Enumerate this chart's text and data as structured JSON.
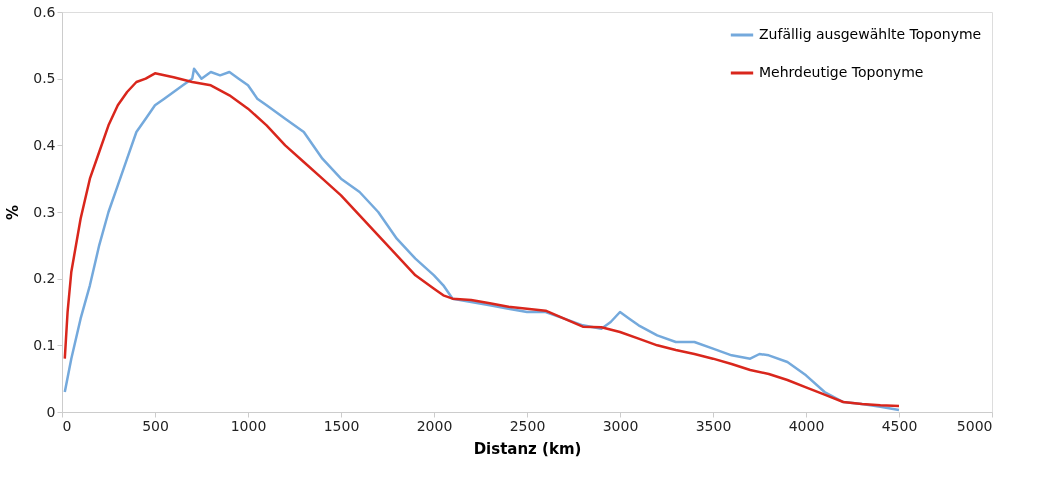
{
  "chart_data": {
    "type": "line",
    "xlabel": "Distanz (km)",
    "ylabel": "%",
    "xlim": [
      0,
      5000
    ],
    "ylim": [
      0,
      0.6
    ],
    "xticks": [
      0,
      500,
      1000,
      1500,
      2000,
      2500,
      3000,
      3500,
      4000,
      4500,
      5000
    ],
    "yticks": [
      0,
      0.1,
      0.2,
      0.3,
      0.4,
      0.5,
      0.6
    ],
    "grid": false,
    "legend": "top right",
    "line_style": "solid",
    "marker": "none",
    "series": [
      {
        "name": "Zufällig ausgewählte Toponyme",
        "color": "#74a9dc",
        "x": [
          15,
          50,
          100,
          150,
          200,
          250,
          300,
          350,
          400,
          450,
          500,
          550,
          600,
          650,
          700,
          710,
          750,
          800,
          850,
          900,
          950,
          1000,
          1050,
          1100,
          1200,
          1300,
          1400,
          1500,
          1600,
          1700,
          1800,
          1900,
          2000,
          2050,
          2100,
          2200,
          2300,
          2400,
          2500,
          2600,
          2700,
          2800,
          2900,
          2950,
          3000,
          3050,
          3100,
          3200,
          3300,
          3400,
          3500,
          3600,
          3700,
          3750,
          3800,
          3900,
          4000,
          4100,
          4200,
          4300,
          4400,
          4500
        ],
        "values": [
          0.03,
          0.08,
          0.14,
          0.19,
          0.25,
          0.3,
          0.34,
          0.38,
          0.42,
          0.44,
          0.46,
          0.47,
          0.48,
          0.49,
          0.5,
          0.515,
          0.5,
          0.51,
          0.505,
          0.51,
          0.5,
          0.49,
          0.47,
          0.46,
          0.44,
          0.42,
          0.38,
          0.35,
          0.33,
          0.3,
          0.26,
          0.23,
          0.205,
          0.19,
          0.17,
          0.165,
          0.16,
          0.155,
          0.15,
          0.15,
          0.14,
          0.13,
          0.125,
          0.135,
          0.15,
          0.14,
          0.13,
          0.115,
          0.105,
          0.105,
          0.095,
          0.085,
          0.08,
          0.087,
          0.085,
          0.075,
          0.055,
          0.03,
          0.015,
          0.012,
          0.008,
          0.003
        ]
      },
      {
        "name": "Mehrdeutige Toponyme",
        "color": "#d9261c",
        "x": [
          15,
          30,
          50,
          100,
          150,
          200,
          250,
          300,
          350,
          400,
          450,
          500,
          600,
          700,
          800,
          900,
          1000,
          1100,
          1200,
          1300,
          1400,
          1500,
          1600,
          1700,
          1800,
          1900,
          2000,
          2050,
          2100,
          2200,
          2300,
          2400,
          2500,
          2600,
          2700,
          2800,
          2900,
          3000,
          3100,
          3200,
          3300,
          3400,
          3500,
          3600,
          3700,
          3800,
          3900,
          4000,
          4100,
          4200,
          4300,
          4400,
          4500
        ],
        "values": [
          0.08,
          0.15,
          0.21,
          0.29,
          0.35,
          0.39,
          0.43,
          0.46,
          0.48,
          0.495,
          0.5,
          0.508,
          0.502,
          0.495,
          0.49,
          0.475,
          0.455,
          0.43,
          0.4,
          0.375,
          0.35,
          0.325,
          0.295,
          0.265,
          0.235,
          0.205,
          0.185,
          0.175,
          0.17,
          0.168,
          0.163,
          0.158,
          0.155,
          0.152,
          0.14,
          0.128,
          0.127,
          0.12,
          0.11,
          0.1,
          0.093,
          0.087,
          0.08,
          0.072,
          0.063,
          0.057,
          0.048,
          0.037,
          0.026,
          0.015,
          0.012,
          0.01,
          0.009
        ]
      }
    ]
  }
}
